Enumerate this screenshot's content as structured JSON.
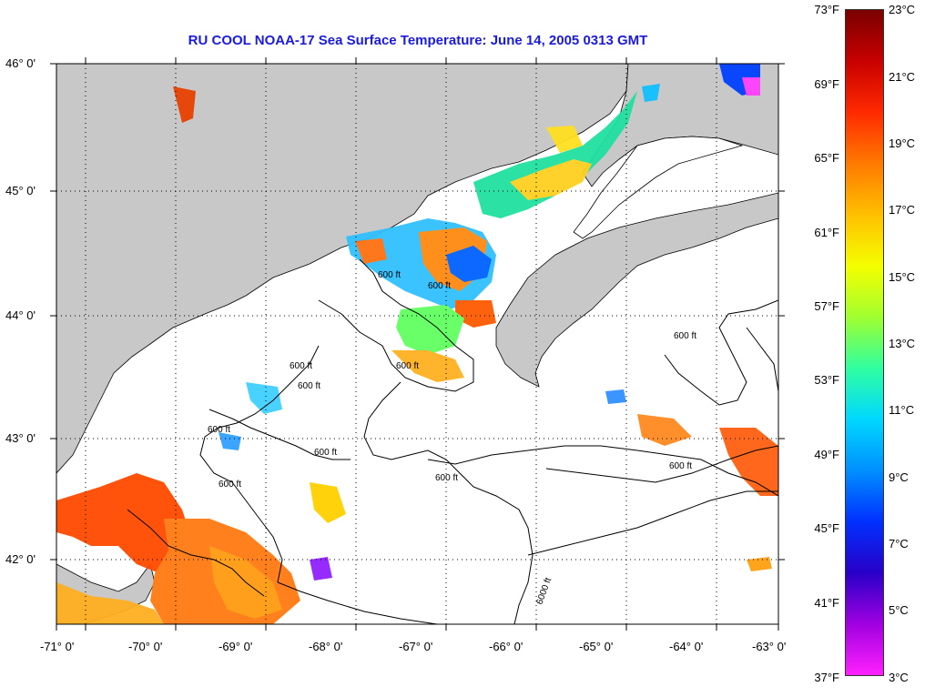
{
  "title": "RU COOL  NOAA-17  Sea Surface Temperature:  June 14, 2005 0313 GMT",
  "map": {
    "land_color": "#c8c8c8",
    "ocean_color": "#ffffff",
    "lat_labels": [
      "46° 0'",
      "45° 0'",
      "44° 0'",
      "43° 0'",
      "42° 0'"
    ],
    "lon_labels": [
      "-71° 0'",
      "-70° 0'",
      "-69° 0'",
      "-68° 0'",
      "-67° 0'",
      "-66° 0'",
      "-65° 0'",
      "-64° 0'",
      "-63° 0'"
    ],
    "contour_labels": [
      "600 ft",
      "600 ft",
      "600 ft",
      "600 ft",
      "600 ft",
      "600 ft",
      "600 ft",
      "600 ft",
      "600 ft",
      "600 ft",
      "600 ft",
      "6000 ft"
    ]
  },
  "colorbar": {
    "fahrenheit_labels": [
      "73°F",
      "69°F",
      "65°F",
      "61°F",
      "57°F",
      "53°F",
      "49°F",
      "45°F",
      "41°F",
      "37°F"
    ],
    "celsius_labels": [
      "23°C",
      "21°C",
      "19°C",
      "17°C",
      "15°C",
      "13°C",
      "11°C",
      "9°C",
      "7°C",
      "5°C",
      "3°C"
    ],
    "gradient_colors": [
      "#7a0000",
      "#c80000",
      "#ff2a00",
      "#ff7a00",
      "#ffc000",
      "#f5ff00",
      "#a0ff30",
      "#30ffa0",
      "#00d8ff",
      "#0090ff",
      "#0030ff",
      "#2800c8",
      "#a000e0",
      "#ff20ff"
    ]
  }
}
